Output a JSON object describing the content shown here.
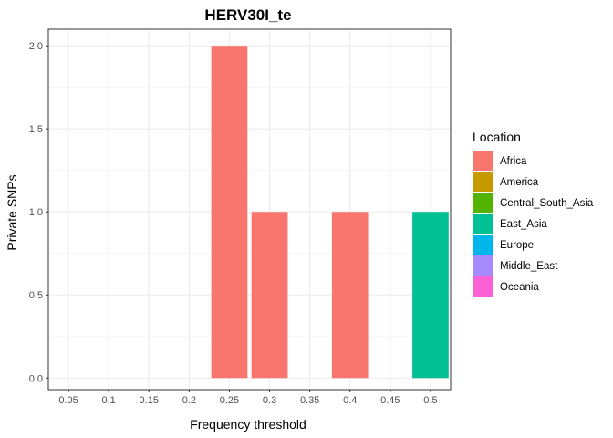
{
  "chart_data": {
    "type": "bar",
    "title": "HERV30I_te",
    "xlabel": "Frequency threshold",
    "ylabel": "Private SNPs",
    "x_ticks": [
      "0.05",
      "0.1",
      "0.15",
      "0.2",
      "0.25",
      "0.3",
      "0.35",
      "0.4",
      "0.45",
      "0.5"
    ],
    "y_ticks": [
      "0.0",
      "0.5",
      "1.0",
      "1.5",
      "2.0"
    ],
    "xlim": [
      0.025,
      0.525
    ],
    "ylim": [
      -0.07,
      2.1
    ],
    "grid": true,
    "legend": {
      "title": "Location",
      "placement": "right",
      "entries": [
        {
          "name": "Africa",
          "color": "#F8766D"
        },
        {
          "name": "America",
          "color": "#C49A00"
        },
        {
          "name": "Central_South_Asia",
          "color": "#53B400"
        },
        {
          "name": "East_Asia",
          "color": "#00C094"
        },
        {
          "name": "Europe",
          "color": "#00B6EB"
        },
        {
          "name": "Middle_East",
          "color": "#A58AFF"
        },
        {
          "name": "Oceania",
          "color": "#FB61D7"
        }
      ]
    },
    "bars": [
      {
        "x": 0.25,
        "value": 2,
        "location": "Africa"
      },
      {
        "x": 0.3,
        "value": 1,
        "location": "Africa"
      },
      {
        "x": 0.4,
        "value": 1,
        "location": "Africa"
      },
      {
        "x": 0.5,
        "value": 1,
        "location": "East_Asia"
      }
    ]
  }
}
